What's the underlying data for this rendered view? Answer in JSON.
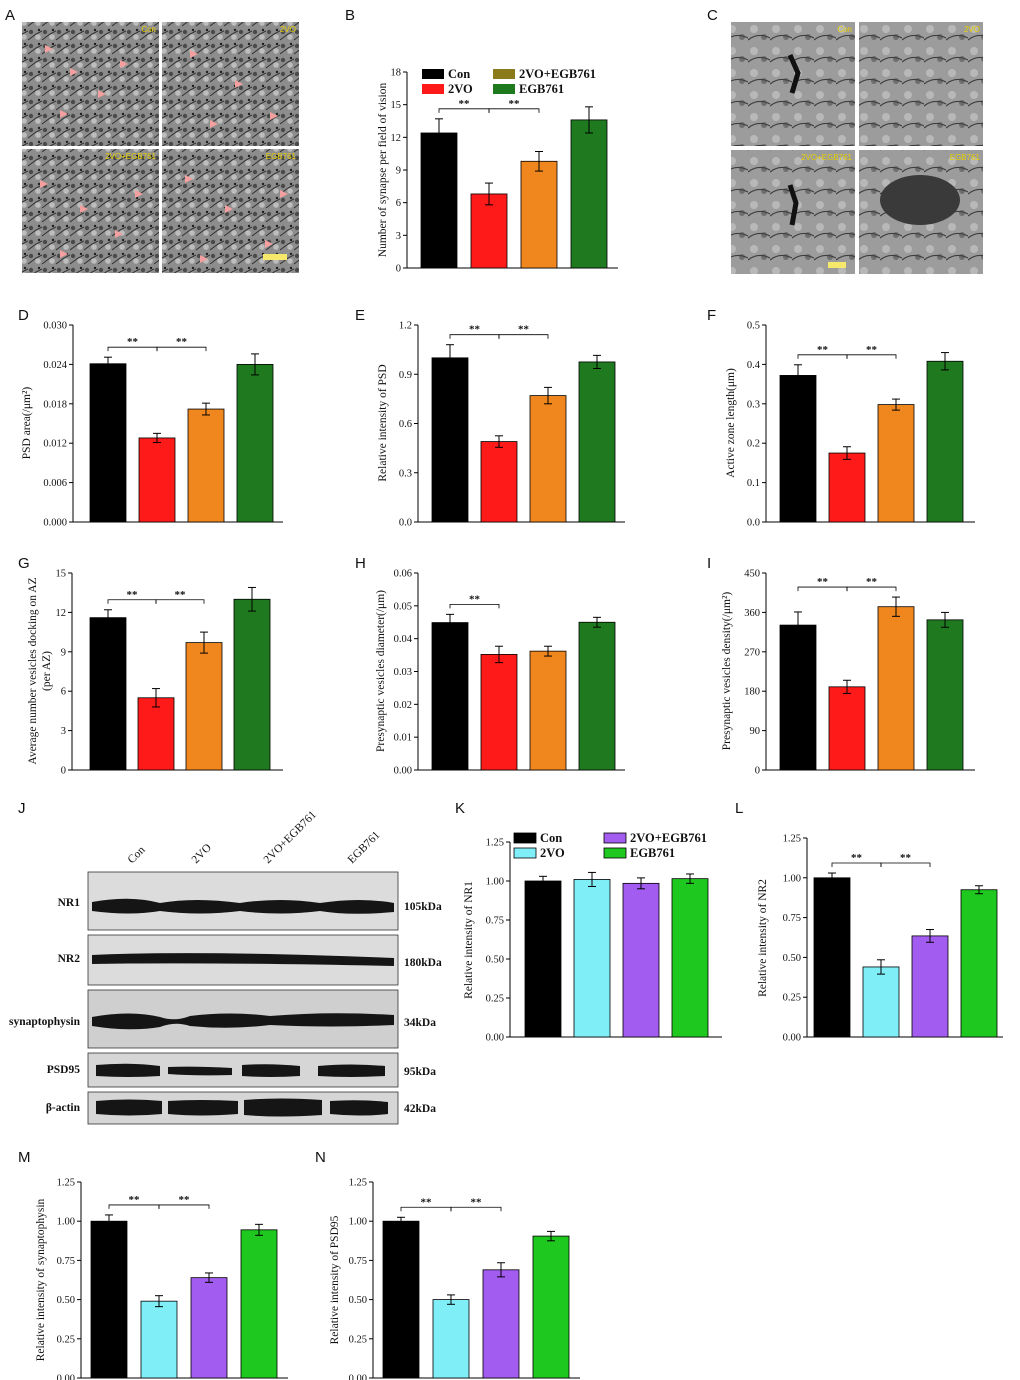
{
  "panel_letters": {
    "A": "A",
    "B": "B",
    "C": "C",
    "D": "D",
    "E": "E",
    "F": "F",
    "G": "G",
    "H": "H",
    "I": "I",
    "J": "J",
    "K": "K",
    "L": "L",
    "M": "M",
    "N": "N"
  },
  "sig_marker": "**",
  "colors": {
    "con": "#000000",
    "vo2_red": "#ff1a1a",
    "combo_orange": "#f0871e",
    "egb_dark_green": "#1f7a1f",
    "legend_olive": "#8a7a1a",
    "vo2_cyan": "#80eef7",
    "combo_purple": "#a35cf0",
    "egb_green": "#1ec81e"
  },
  "em_panel_A": {
    "tags": [
      "Con",
      "2VO",
      "2VO+EGB761",
      "EGB761"
    ]
  },
  "em_panel_C": {
    "tags": [
      "Con",
      "2VO",
      "2VO+EGB761",
      "EGB761"
    ]
  },
  "legend_B": [
    "Con",
    "2VO",
    "2VO+EGB761",
    "EGB761"
  ],
  "legend_K": [
    "Con",
    "2VO",
    "2VO+EGB761",
    "EGB761"
  ],
  "western_blot": {
    "lanes": [
      "Con",
      "2VO",
      "2VO+EGB761",
      "EGB761"
    ],
    "rows": [
      {
        "protein": "NR1",
        "size": "105kDa"
      },
      {
        "protein": "NR2",
        "size": "180kDa"
      },
      {
        "protein": "synaptophysin",
        "size": "34kDa"
      },
      {
        "protein": "PSD95",
        "size": "95kDa"
      },
      {
        "protein": "β-actin",
        "size": "42kDa"
      }
    ]
  },
  "chart_data": [
    {
      "id": "B",
      "type": "bar",
      "categories": [
        "Con",
        "2VO",
        "2VO+EGB761",
        "EGB761"
      ],
      "values": [
        12.4,
        6.8,
        9.8,
        13.6
      ],
      "errors": [
        1.3,
        1.0,
        0.9,
        1.2
      ],
      "ylabel": "Number of synapse per field of vision",
      "ylim": [
        0,
        18
      ],
      "ticks": [
        "0",
        "3",
        "6",
        "9",
        "12",
        "15",
        "18"
      ],
      "sig": [
        [
          0,
          1
        ],
        [
          1,
          2
        ]
      ],
      "palette": "red"
    },
    {
      "id": "D",
      "type": "bar",
      "categories": [
        "Con",
        "2VO",
        "2VO+EGB761",
        "EGB761"
      ],
      "values": [
        0.0241,
        0.0128,
        0.0172,
        0.024
      ],
      "errors": [
        0.001,
        0.0007,
        0.0009,
        0.0016
      ],
      "ylabel": "PSD area(/μm²)",
      "ylim": [
        0,
        0.03
      ],
      "ticks": [
        "0.000",
        "0.006",
        "0.012",
        "0.018",
        "0.024",
        "0.030"
      ],
      "sig": [
        [
          0,
          1
        ],
        [
          1,
          2
        ]
      ],
      "palette": "red"
    },
    {
      "id": "E",
      "type": "bar",
      "categories": [
        "Con",
        "2VO",
        "2VO+EGB761",
        "EGB761"
      ],
      "values": [
        1.0,
        0.49,
        0.77,
        0.975
      ],
      "errors": [
        0.08,
        0.035,
        0.05,
        0.04
      ],
      "ylabel": "Relative intensity of PSD",
      "ylim": [
        0,
        1.2
      ],
      "ticks": [
        "0.0",
        "0.3",
        "0.6",
        "0.9",
        "1.2"
      ],
      "sig": [
        [
          0,
          1
        ],
        [
          1,
          2
        ]
      ],
      "palette": "red"
    },
    {
      "id": "F",
      "type": "bar",
      "categories": [
        "Con",
        "2VO",
        "2VO+EGB761",
        "EGB761"
      ],
      "values": [
        0.372,
        0.175,
        0.298,
        0.408
      ],
      "errors": [
        0.027,
        0.016,
        0.014,
        0.022
      ],
      "ylabel": "Active zone length(μm)",
      "ylim": [
        0,
        0.5
      ],
      "ticks": [
        "0.0",
        "0.1",
        "0.2",
        "0.3",
        "0.4",
        "0.5"
      ],
      "sig": [
        [
          0,
          1
        ],
        [
          1,
          2
        ]
      ],
      "palette": "red"
    },
    {
      "id": "G",
      "type": "bar",
      "categories": [
        "Con",
        "2VO",
        "2VO+EGB761",
        "EGB761"
      ],
      "values": [
        11.6,
        5.5,
        9.7,
        13.0
      ],
      "errors": [
        0.6,
        0.7,
        0.8,
        0.9
      ],
      "ylabel": [
        "Average number vesicles docking on AZ",
        "(per AZ)"
      ],
      "ylim": [
        0,
        15
      ],
      "ticks": [
        "0",
        "3",
        "6",
        "9",
        "12",
        "15"
      ],
      "sig": [
        [
          0,
          1
        ],
        [
          1,
          2
        ]
      ],
      "palette": "red"
    },
    {
      "id": "H",
      "type": "bar",
      "categories": [
        "Con",
        "2VO",
        "2VO+EGB761",
        "EGB761"
      ],
      "values": [
        0.0449,
        0.0352,
        0.0362,
        0.045
      ],
      "errors": [
        0.0025,
        0.0025,
        0.0015,
        0.0015
      ],
      "ylabel": "Presynaptic vesicles diameter(/μm)",
      "ylim": [
        0,
        0.06
      ],
      "ticks": [
        "0.00",
        "0.01",
        "0.02",
        "0.03",
        "0.04",
        "0.05",
        "0.06"
      ],
      "sig": [
        [
          0,
          1
        ]
      ],
      "palette": "red"
    },
    {
      "id": "I",
      "type": "bar",
      "categories": [
        "Con",
        "2VO",
        "2VO+EGB761",
        "EGB761"
      ],
      "values": [
        331,
        190,
        373,
        343
      ],
      "errors": [
        30,
        15,
        22,
        17
      ],
      "ylabel": "Presynaptic vesicles density(/μm²)",
      "ylim": [
        0,
        450
      ],
      "ticks": [
        "0",
        "90",
        "180",
        "270",
        "360",
        "450"
      ],
      "sig": [
        [
          0,
          1
        ],
        [
          1,
          2
        ]
      ],
      "palette": "red"
    },
    {
      "id": "K",
      "type": "bar",
      "categories": [
        "Con",
        "2VO",
        "2VO+EGB761",
        "EGB761"
      ],
      "values": [
        1.0,
        1.01,
        0.985,
        1.015
      ],
      "errors": [
        0.03,
        0.045,
        0.035,
        0.03
      ],
      "ylabel": "Relative intensity of NR1",
      "ylim": [
        0,
        1.25
      ],
      "ticks": [
        "0.00",
        "0.25",
        "0.50",
        "0.75",
        "1.00",
        "1.25"
      ],
      "sig": [],
      "palette": "cyan"
    },
    {
      "id": "L",
      "type": "bar",
      "categories": [
        "Con",
        "2VO",
        "2VO+EGB761",
        "EGB761"
      ],
      "values": [
        1.0,
        0.44,
        0.635,
        0.925
      ],
      "errors": [
        0.03,
        0.045,
        0.04,
        0.025
      ],
      "ylabel": "Relative intensity of NR2",
      "ylim": [
        0,
        1.25
      ],
      "ticks": [
        "0.00",
        "0.25",
        "0.50",
        "0.75",
        "1.00",
        "1.25"
      ],
      "sig": [
        [
          0,
          1
        ],
        [
          1,
          2
        ]
      ],
      "palette": "cyan"
    },
    {
      "id": "M",
      "type": "bar",
      "categories": [
        "Con",
        "2VO",
        "2VO+EGB761",
        "EGB761"
      ],
      "values": [
        1.0,
        0.49,
        0.64,
        0.945
      ],
      "errors": [
        0.04,
        0.035,
        0.03,
        0.035
      ],
      "ylabel": "Relative intensity of synaptophysin",
      "ylim": [
        0,
        1.25
      ],
      "ticks": [
        "0.00",
        "0.25",
        "0.50",
        "0.75",
        "1.00",
        "1.25"
      ],
      "sig": [
        [
          0,
          1
        ],
        [
          1,
          2
        ]
      ],
      "palette": "cyan"
    },
    {
      "id": "N",
      "type": "bar",
      "categories": [
        "Con",
        "2VO",
        "2VO+EGB761",
        "EGB761"
      ],
      "values": [
        1.0,
        0.5,
        0.69,
        0.905
      ],
      "errors": [
        0.025,
        0.03,
        0.045,
        0.03
      ],
      "ylabel": "Relative intensity of PSD95",
      "ylim": [
        0,
        1.25
      ],
      "ticks": [
        "0.00",
        "0.25",
        "0.50",
        "0.75",
        "1.00",
        "1.25"
      ],
      "sig": [
        [
          0,
          1
        ],
        [
          1,
          2
        ]
      ],
      "palette": "cyan"
    }
  ]
}
